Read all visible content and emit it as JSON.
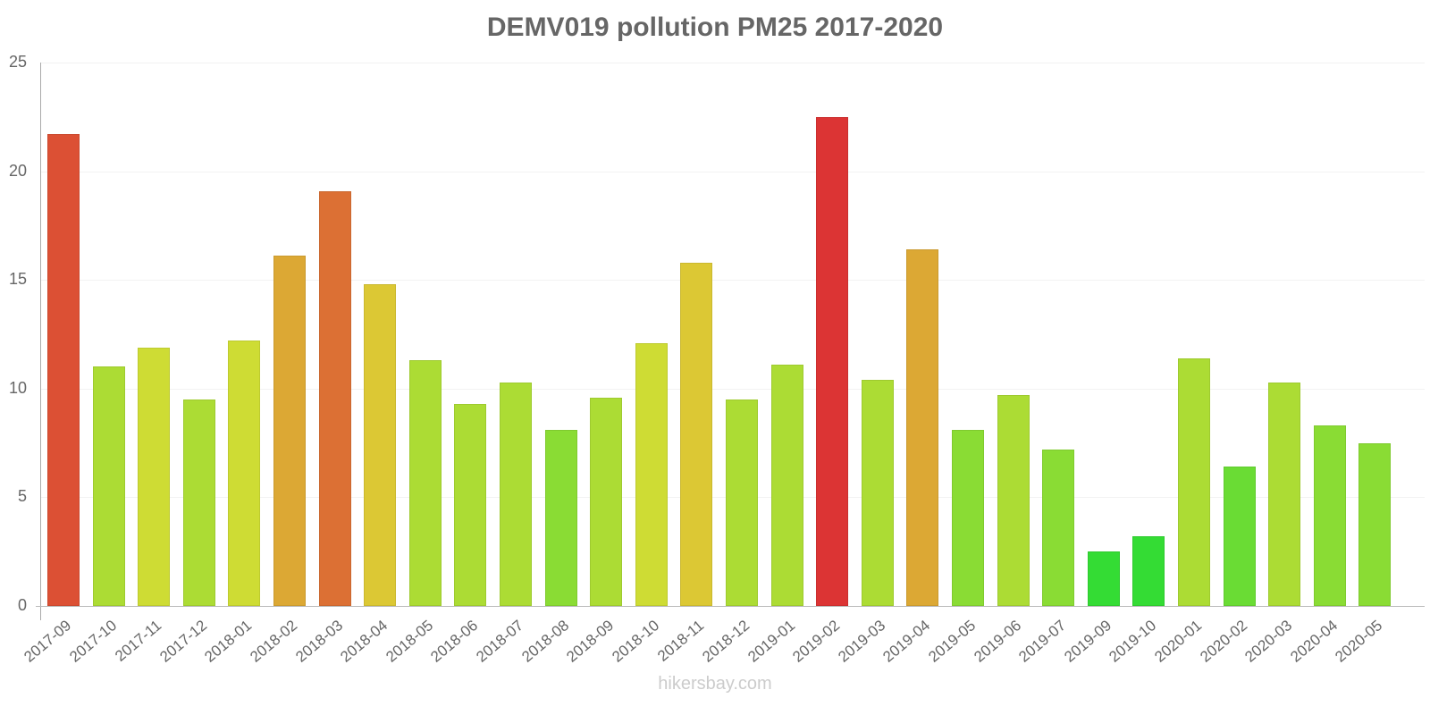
{
  "chart_data": {
    "type": "bar",
    "title": "DEMV019 pollution PM25 2017-2020",
    "xlabel": "",
    "ylabel": "",
    "ylim": [
      0,
      25
    ],
    "yticks": [
      0,
      5,
      10,
      15,
      20,
      25
    ],
    "grid": true,
    "legend": null,
    "categories": [
      "2017-09",
      "2017-10",
      "2017-11",
      "2017-12",
      "2018-01",
      "2018-02",
      "2018-03",
      "2018-04",
      "2018-05",
      "2018-06",
      "2018-07",
      "2018-08",
      "2018-09",
      "2018-10",
      "2018-11",
      "2018-12",
      "2019-01",
      "2019-02",
      "2019-03",
      "2019-04",
      "2019-05",
      "2019-06",
      "2019-07",
      "2019-09",
      "2019-10",
      "2020-01",
      "2020-02",
      "2020-03",
      "2020-04",
      "2020-05"
    ],
    "values": [
      21.7,
      11.0,
      11.9,
      9.5,
      12.2,
      16.1,
      19.1,
      14.8,
      11.3,
      9.3,
      10.3,
      8.1,
      9.6,
      12.1,
      15.8,
      9.5,
      11.1,
      22.5,
      10.4,
      16.4,
      8.1,
      9.7,
      7.2,
      2.5,
      3.2,
      11.4,
      6.4,
      10.3,
      8.3,
      7.5
    ],
    "colors": [
      "#dc5034",
      "#acdc34",
      "#cedc34",
      "#acdc34",
      "#cedc34",
      "#dca834",
      "#dc7034",
      "#dcc834",
      "#acdc34",
      "#acdc34",
      "#acdc34",
      "#8adc34",
      "#acdc34",
      "#cedc34",
      "#dcc834",
      "#acdc34",
      "#acdc34",
      "#dc3434",
      "#acdc34",
      "#dca834",
      "#8adc34",
      "#acdc34",
      "#8adc34",
      "#34dc34",
      "#34dc34",
      "#acdc34",
      "#6adc34",
      "#acdc34",
      "#8adc34",
      "#8adc34"
    ]
  },
  "watermark": "hikersbay.com"
}
